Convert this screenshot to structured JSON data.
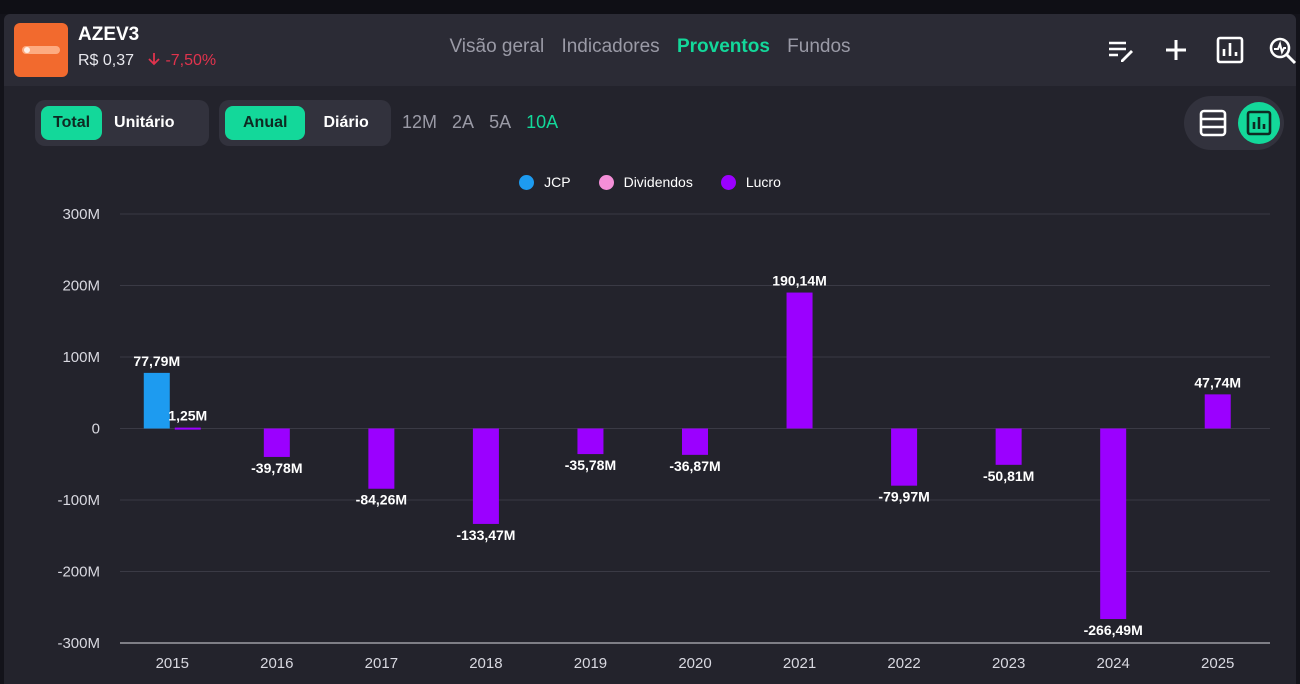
{
  "header": {
    "ticker": "AZEV3",
    "price": "R$ 0,37",
    "change": "-7,50%",
    "nav": [
      "Visão geral",
      "Indicadores",
      "Proventos",
      "Fundos"
    ],
    "active_nav": "Proventos",
    "icons": [
      "edit-list-icon",
      "plus-icon",
      "chart-box-icon",
      "search-chart-icon"
    ]
  },
  "controls": {
    "mode": [
      "Total",
      "Unitário"
    ],
    "mode_selected": "Total",
    "freq": [
      "Anual",
      "Diário"
    ],
    "freq_selected": "Anual",
    "periods": [
      "12M",
      "2A",
      "5A",
      "10A"
    ],
    "period_selected": "10A"
  },
  "colors": {
    "accent": "#13d89a",
    "jcp": "#1d9bf0",
    "dividendos": "#f48fd8",
    "lucro": "#9b00ff",
    "negative": "#e0334d"
  },
  "chart_data": {
    "type": "bar",
    "legend": [
      "JCP",
      "Dividendos",
      "Lucro"
    ],
    "categories": [
      "2015",
      "2016",
      "2017",
      "2018",
      "2019",
      "2020",
      "2021",
      "2022",
      "2023",
      "2024",
      "2025"
    ],
    "series": [
      {
        "name": "JCP",
        "values": [
          77.79,
          null,
          null,
          null,
          null,
          null,
          null,
          null,
          null,
          null,
          null
        ],
        "labels": [
          "77,79M",
          "",
          "",
          "",
          "",
          "",
          "",
          "",
          "",
          "",
          ""
        ]
      },
      {
        "name": "Dividendos",
        "values": [
          null,
          null,
          null,
          null,
          null,
          null,
          null,
          null,
          null,
          null,
          null
        ],
        "labels": [
          "",
          "",
          "",
          "",
          "",
          "",
          "",
          "",
          "",
          "",
          ""
        ]
      },
      {
        "name": "Lucro",
        "values": [
          1.25,
          -39.78,
          -84.26,
          -133.47,
          -35.78,
          -36.87,
          190.14,
          -79.97,
          -50.81,
          -266.49,
          47.74
        ],
        "labels": [
          "1,25M",
          "-39,78M",
          "-84,26M",
          "-133,47M",
          "-35,78M",
          "-36,87M",
          "190,14M",
          "-79,97M",
          "-50,81M",
          "-266,49M",
          "47,74M"
        ]
      }
    ],
    "yticks": [
      300,
      200,
      100,
      0,
      -100,
      -200,
      -300
    ],
    "ytick_labels": [
      "300M",
      "200M",
      "100M",
      "0",
      "-100M",
      "-200M",
      "-300M"
    ],
    "ylim": [
      -300,
      300
    ],
    "grid": true,
    "legend_position": "top-center"
  }
}
